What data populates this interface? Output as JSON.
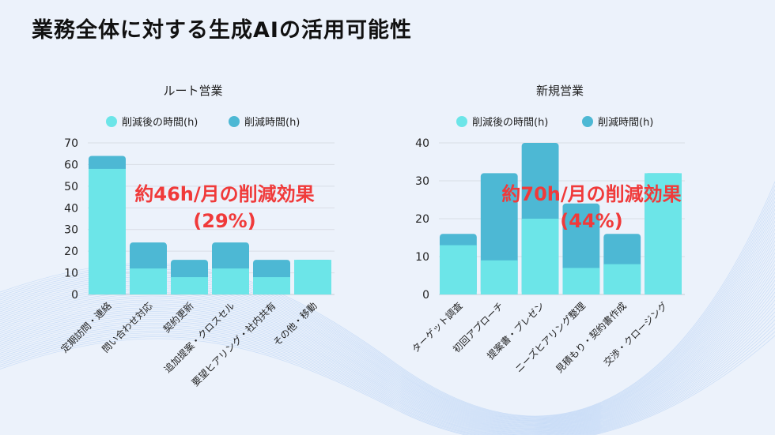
{
  "title": "業務全体に対する生成AIの活用可能性",
  "colors": {
    "after": "#6ce5e8",
    "reduced": "#4db8d4",
    "annotation": "#f03a3a",
    "grid": "#d9dde6"
  },
  "chart_data": [
    {
      "type": "bar",
      "stacked": true,
      "title": "ルート営業",
      "legend": [
        "削減後の時間(h)",
        "削減時間(h)"
      ],
      "legend_position": "top",
      "categories": [
        "定期訪問・連絡",
        "問い合わせ対応",
        "契約更新",
        "追加提案・クロスセル",
        "要望ヒアリング・社内共有",
        "その他・移動"
      ],
      "series": [
        {
          "name": "削減後の時間(h)",
          "values": [
            58,
            12,
            8,
            12,
            8,
            16
          ]
        },
        {
          "name": "削減時間(h)",
          "values": [
            6,
            12,
            8,
            12,
            8,
            0
          ]
        }
      ],
      "ylim": [
        0,
        70
      ],
      "yticks": [
        0,
        10,
        20,
        30,
        40,
        50,
        60,
        70
      ],
      "grid": true,
      "annotation": [
        "約46h/月の削減効果",
        "(29%)"
      ]
    },
    {
      "type": "bar",
      "stacked": true,
      "title": "新規営業",
      "legend": [
        "削減後の時間(h)",
        "削減時間(h)"
      ],
      "legend_position": "top",
      "categories": [
        "ターゲット調査",
        "初回アプローチ",
        "提案書・プレゼン",
        "ニーズヒアリング整理",
        "見積もり・契約書作成",
        "交渉・クロージング"
      ],
      "series": [
        {
          "name": "削減後の時間(h)",
          "values": [
            13,
            9,
            20,
            7,
            8,
            32
          ]
        },
        {
          "name": "削減時間(h)",
          "values": [
            3,
            23,
            20,
            17,
            8,
            0
          ]
        }
      ],
      "ylim": [
        0,
        40
      ],
      "yticks": [
        0,
        10,
        20,
        30,
        40
      ],
      "grid": true,
      "annotation": [
        "約70h/月の削減効果",
        "(44%)"
      ]
    }
  ]
}
